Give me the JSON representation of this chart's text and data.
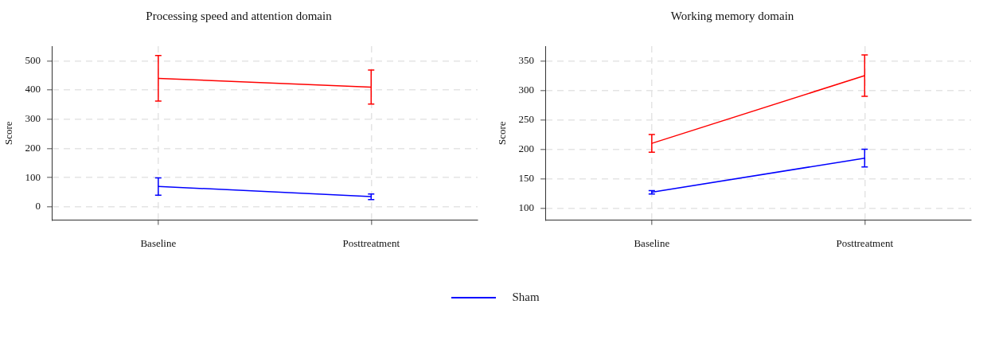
{
  "chart_data": [
    {
      "type": "line",
      "title": "Processing speed and attention domain",
      "ylabel": "Score",
      "categories": [
        "Baseline",
        "Posttreatment"
      ],
      "series": [
        {
          "name": "Sham",
          "color": "#0000ff",
          "values": [
            70,
            35
          ],
          "errors": [
            [
              40,
              99
            ],
            [
              25,
              44
            ]
          ]
        },
        {
          "color": "#ff0000",
          "values": [
            440,
            410
          ],
          "errors": [
            [
              362,
              518
            ],
            [
              352,
              468
            ]
          ]
        }
      ],
      "ylim": [
        -45,
        550
      ],
      "yticks": [
        0,
        100,
        200,
        300,
        400,
        500
      ],
      "grid": true,
      "legend": "bottom",
      "line_style": "solid"
    },
    {
      "type": "line",
      "title": "Working memory domain",
      "ylabel": "Score",
      "categories": [
        "Baseline",
        "Posttreatment"
      ],
      "series": [
        {
          "color": "#0000ff",
          "values": [
            127,
            185
          ],
          "errors": [
            [
              124,
              130
            ],
            [
              170,
              200
            ]
          ]
        },
        {
          "color": "#ff0000",
          "values": [
            210,
            325
          ],
          "errors": [
            [
              195,
              225
            ],
            [
              290,
              360
            ]
          ]
        }
      ],
      "ylim": [
        80,
        375
      ],
      "yticks": [
        100,
        150,
        200,
        250,
        300,
        350
      ],
      "grid": true,
      "legend": "bottom",
      "line_style": "solid"
    }
  ]
}
